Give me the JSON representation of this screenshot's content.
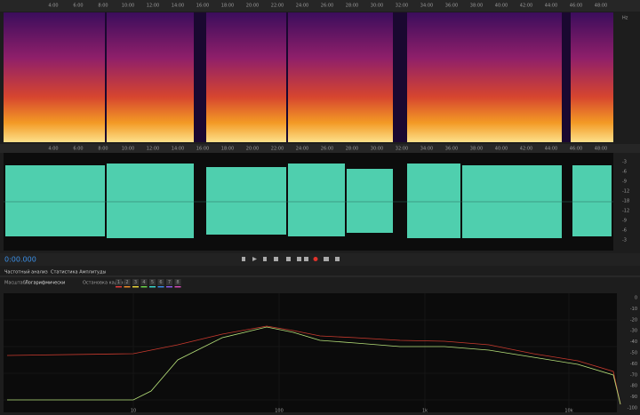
{
  "ruler": {
    "labels": [
      "4:00",
      "6:00",
      "8:00",
      "10:00",
      "12:00",
      "14:00",
      "16:00",
      "18:00",
      "20:00",
      "22:00",
      "24:00",
      "26:00",
      "28:00",
      "30:00",
      "32:00",
      "34:00",
      "36:00",
      "38:00",
      "40:00",
      "42:00",
      "44:00",
      "46:00",
      "48:00"
    ]
  },
  "spectrogram": {
    "unit": "Hz"
  },
  "waveform": {
    "db_labels": [
      "-3",
      "-6",
      "-9",
      "-12",
      "-18",
      "-12",
      "-9",
      "-6",
      "-3"
    ]
  },
  "transport": {
    "timecode": "0:00.000"
  },
  "tabs": [
    "Частотный анализ",
    "Статистика Амплитуды"
  ],
  "controls": {
    "scale_label": "Масштаб:",
    "scale_value": "Логарифмически",
    "freeze_label": "Остановка кадра:",
    "frames": [
      "1",
      "2",
      "3",
      "4",
      "5",
      "6",
      "7",
      "8"
    ]
  },
  "graph": {
    "x_labels": [
      "10",
      "100",
      "1k",
      "10k"
    ],
    "y_labels": [
      "0",
      "-10",
      "-20",
      "-30",
      "-40",
      "-50",
      "-60",
      "-70",
      "-80",
      "-90",
      "-100"
    ]
  }
}
